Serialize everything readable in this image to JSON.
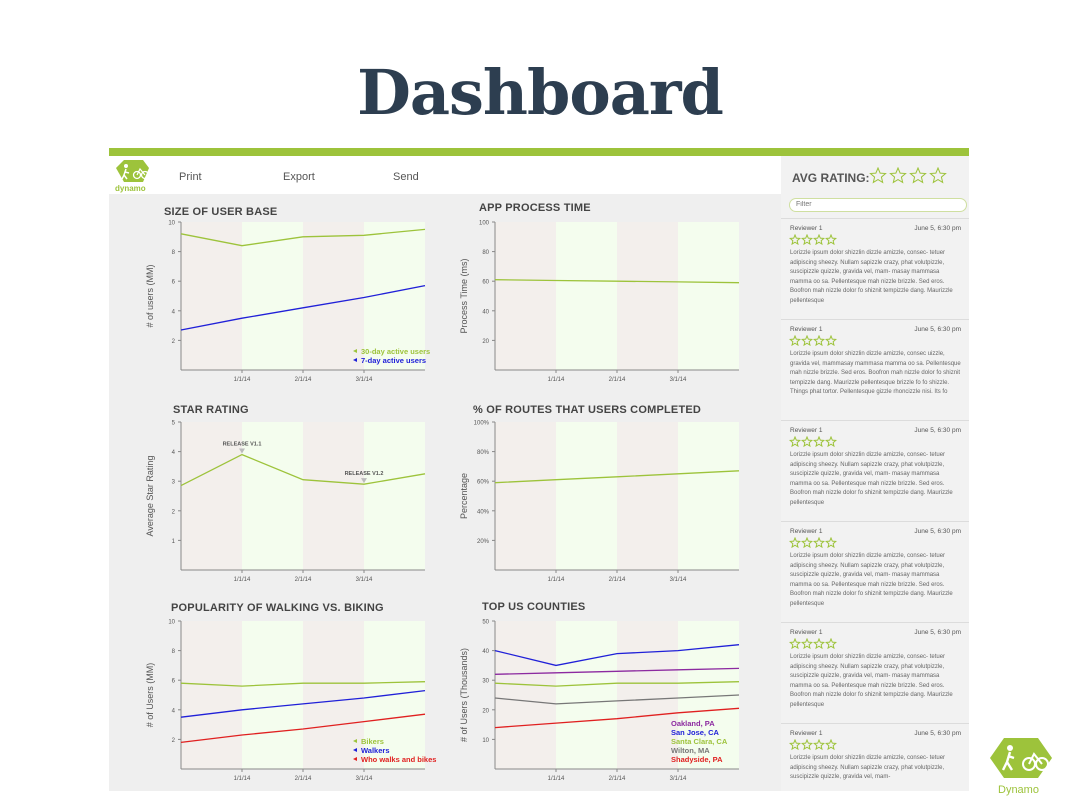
{
  "slide": {
    "title": "Dashboard"
  },
  "brand": {
    "name": "dynamo",
    "footer_name": "Dynamo",
    "accent": "#9dc33b"
  },
  "toolbar": {
    "print": "Print",
    "export": "Export",
    "send": "Send"
  },
  "sidebar": {
    "avg_label": "AVG RATING:",
    "avg_stars": 4,
    "filter_placeholder": "Filter",
    "reviews": [
      {
        "name": "Reviewer 1",
        "date": "June 5, 6:30 pm",
        "stars": 4,
        "text": "Lorizzle ipsum dolor shizzlin dizzle amizzle, consec- tetuer adipiscing sheezy. Nullam sapizzle crazy, phat volutpizzle, suscipizzle quizzle, gravida vel, mam- masay mammasa mamma oo sa. Pellentesque mah nizzle brizzle. Sed eros. Boofron mah nizzle dolor fo shiznit tempizzle dang. Maurizzle pellentesque"
      },
      {
        "name": "Reviewer 1",
        "date": "June 5, 6:30 pm",
        "stars": 4,
        "text": "Lorizzle ipsum dolor shizzlin dizzle amizzle, consec uizzle, gravida vel, mammasay mammasa mamma oo sa. Pellentesque mah nizzle brizzle. Sed eros. Boofron mah nizzle dolor fo shiznit tempizzle dang. Maurizzle pellentesque brizzle fo fo shizzle. Things phat tortor. Pellentesque gizzle rhoncizzle nisi. Its fo"
      },
      {
        "name": "Reviewer 1",
        "date": "June 5, 6:30 pm",
        "stars": 4,
        "text": "Lorizzle ipsum dolor shizzlin dizzle amizzle, consec- tetuer adipiscing sheezy. Nullam sapizzle crazy, phat volutpizzle, suscipizzle quizzle, gravida vel, mam- masay mammasa mamma oo sa. Pellentesque mah nizzle brizzle. Sed eros. Boofron mah nizzle dolor fo shiznit tempizzle dang. Maurizzle pellentesque"
      },
      {
        "name": "Reviewer 1",
        "date": "June 5, 6:30 pm",
        "stars": 4,
        "text": "Lorizzle ipsum dolor shizzlin dizzle amizzle, consec- tetuer adipiscing sheezy. Nullam sapizzle crazy, phat volutpizzle, suscipizzle quizzle, gravida vel, mam- masay mammasa mamma oo sa. Pellentesque mah nizzle brizzle. Sed eros. Boofron mah nizzle dolor fo shiznit tempizzle dang. Maurizzle pellentesque"
      },
      {
        "name": "Reviewer 1",
        "date": "June 5, 6:30 pm",
        "stars": 4,
        "text": "Lorizzle ipsum dolor shizzlin dizzle amizzle, consec- tetuer adipiscing sheezy. Nullam sapizzle crazy, phat volutpizzle, suscipizzle quizzle, gravida vel, mam- masay mammasa mamma oo sa. Pellentesque mah nizzle brizzle. Sed eros. Boofron mah nizzle dolor fo shiznit tempizzle dang. Maurizzle pellentesque"
      },
      {
        "name": "Reviewer 1",
        "date": "June 5, 6:30 pm",
        "stars": 4,
        "text": "Lorizzle ipsum dolor shizzlin dizzle amizzle, consec- tetuer adipiscing sheezy. Nullam sapizzle crazy, phat volutpizzle, suscipizzle quizzle, gravida vel, mam-"
      }
    ]
  },
  "chart_data": [
    {
      "id": "user-base",
      "type": "line",
      "title": "SIZE OF USER BASE",
      "xlabel": "",
      "ylabel": "# of users (MM)",
      "ylim": [
        0,
        10
      ],
      "yticks": [
        "10",
        "8",
        "6",
        "4",
        "2"
      ],
      "ytick_values": [
        10,
        8,
        6,
        4,
        2
      ],
      "xticks": [
        "1/1/14",
        "2/1/14",
        "3/1/14"
      ],
      "x": [
        0,
        1,
        2,
        3,
        4
      ],
      "series": [
        {
          "name": "30-day active users",
          "color": "#9dc33b",
          "values": [
            9.2,
            8.4,
            9.0,
            9.1,
            9.5
          ]
        },
        {
          "name": "7-day active users",
          "color": "#2020d8",
          "values": [
            2.7,
            3.5,
            4.2,
            4.9,
            5.7
          ]
        }
      ],
      "legend": "bottom-right",
      "annotations": []
    },
    {
      "id": "process-time",
      "type": "line",
      "title": "APP PROCESS TIME",
      "xlabel": "",
      "ylabel": "Process Time (ms)",
      "ylim": [
        0,
        100
      ],
      "yticks": [
        "100",
        "80",
        "60",
        "40",
        "20"
      ],
      "ytick_values": [
        100,
        80,
        60,
        40,
        20
      ],
      "xticks": [
        "1/1/14",
        "2/1/14",
        "3/1/14"
      ],
      "x": [
        0,
        1,
        2,
        3,
        4
      ],
      "series": [
        {
          "name": "",
          "color": "#9dc33b",
          "values": [
            61,
            60.5,
            60,
            59.5,
            59
          ]
        }
      ],
      "legend": "none",
      "annotations": []
    },
    {
      "id": "star-rating",
      "type": "line",
      "title": "STAR RATING",
      "xlabel": "",
      "ylabel": "Average Star Rating",
      "ylim": [
        0,
        5
      ],
      "yticks": [
        "5",
        "4",
        "3",
        "2",
        "1"
      ],
      "ytick_values": [
        5,
        4,
        3,
        2,
        1
      ],
      "xticks": [
        "1/1/14",
        "2/1/14",
        "3/1/14"
      ],
      "x": [
        0,
        1,
        2,
        3,
        4
      ],
      "series": [
        {
          "name": "",
          "color": "#9dc33b",
          "values": [
            2.85,
            3.9,
            3.05,
            2.9,
            3.25
          ]
        }
      ],
      "legend": "none",
      "annotations": [
        {
          "label": "RELEASE V1.1",
          "x": 1,
          "y": 3.9
        },
        {
          "label": "RELEASE V1.2",
          "x": 3,
          "y": 2.9
        }
      ]
    },
    {
      "id": "routes-completed",
      "type": "line",
      "title": "% OF ROUTES THAT USERS COMPLETED",
      "xlabel": "",
      "ylabel": "Percentage",
      "ylim": [
        0,
        100
      ],
      "yticks": [
        "100%",
        "80%",
        "60%",
        "40%",
        "20%"
      ],
      "ytick_values": [
        100,
        80,
        60,
        40,
        20
      ],
      "xticks": [
        "1/1/14",
        "2/1/14",
        "3/1/14"
      ],
      "x": [
        0,
        1,
        2,
        3,
        4
      ],
      "series": [
        {
          "name": "",
          "color": "#9dc33b",
          "values": [
            59,
            61,
            63,
            65,
            67
          ]
        }
      ],
      "legend": "none",
      "annotations": []
    },
    {
      "id": "walking-biking",
      "type": "line",
      "title": "POPULARITY OF WALKING VS. BIKING",
      "xlabel": "",
      "ylabel": "# of Users (MM)",
      "ylim": [
        0,
        10
      ],
      "yticks": [
        "10",
        "8",
        "6",
        "4",
        "2"
      ],
      "ytick_values": [
        10,
        8,
        6,
        4,
        2
      ],
      "xticks": [
        "1/1/14",
        "2/1/14",
        "3/1/14"
      ],
      "x": [
        0,
        1,
        2,
        3,
        4
      ],
      "series": [
        {
          "name": "Bikers",
          "color": "#9dc33b",
          "values": [
            5.8,
            5.6,
            5.8,
            5.8,
            5.9
          ]
        },
        {
          "name": "Walkers",
          "color": "#2020d8",
          "values": [
            3.5,
            4.0,
            4.4,
            4.8,
            5.3
          ]
        },
        {
          "name": "Who walks and bikes",
          "color": "#e02020",
          "values": [
            1.8,
            2.3,
            2.7,
            3.2,
            3.7
          ]
        }
      ],
      "legend": "bottom-right",
      "annotations": []
    },
    {
      "id": "top-counties",
      "type": "line",
      "title": "TOP US COUNTIES",
      "xlabel": "",
      "ylabel": "# of Users (Thousands)",
      "ylim": [
        0,
        50
      ],
      "yticks": [
        "50",
        "40",
        "30",
        "20",
        "10"
      ],
      "ytick_values": [
        50,
        40,
        30,
        20,
        10
      ],
      "xticks": [
        "1/1/14",
        "2/1/14",
        "3/1/14"
      ],
      "x": [
        0,
        1,
        2,
        3,
        4
      ],
      "series": [
        {
          "name": "Oakland, PA",
          "color": "#8c2aa0",
          "values": [
            32,
            32.5,
            33,
            33.5,
            34
          ]
        },
        {
          "name": "San Jose, CA",
          "color": "#2020d8",
          "values": [
            40,
            35,
            39,
            40,
            42
          ]
        },
        {
          "name": "Santa Clara, CA",
          "color": "#9dc33b",
          "values": [
            29,
            28,
            29,
            29,
            29.5
          ]
        },
        {
          "name": "Wilton, MA",
          "color": "#777777",
          "values": [
            24,
            22,
            23,
            24,
            25
          ]
        },
        {
          "name": "Shadyside, PA",
          "color": "#e02020",
          "values": [
            14,
            15.5,
            17,
            19,
            20.5
          ]
        }
      ],
      "legend": "bottom-right",
      "annotations": []
    }
  ]
}
